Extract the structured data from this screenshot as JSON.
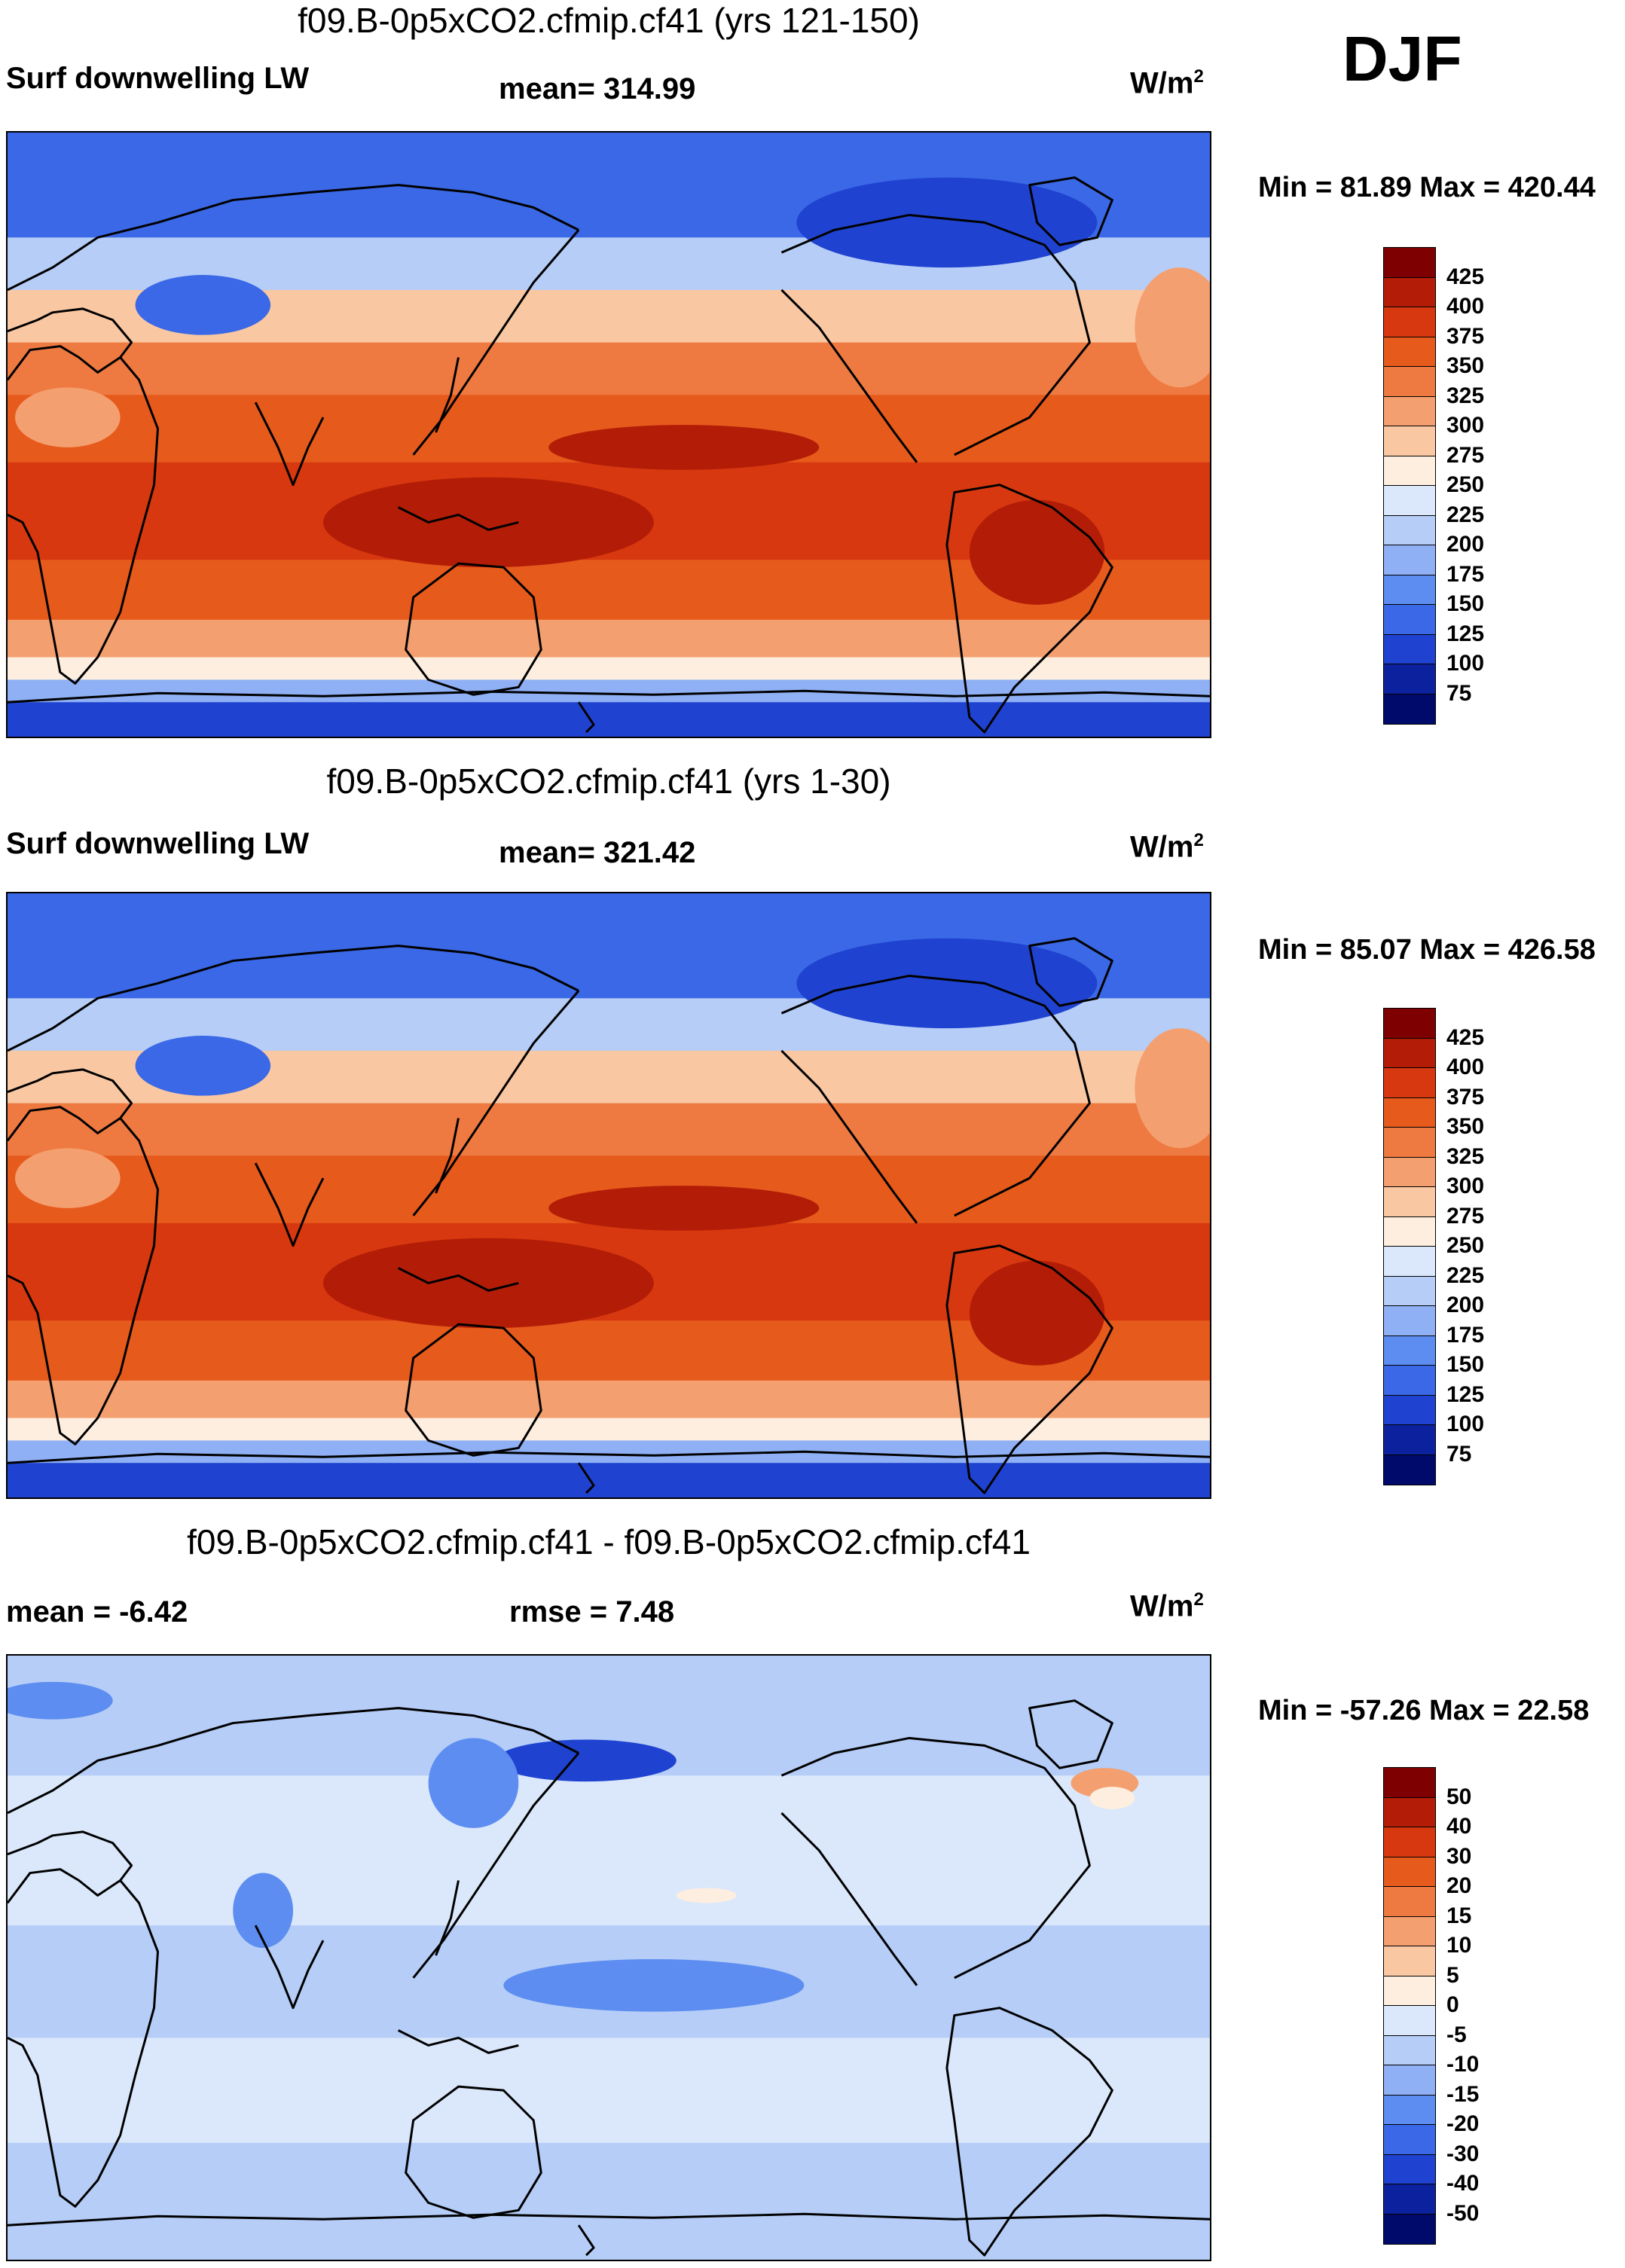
{
  "season": "DJF",
  "panels": [
    {
      "title": "f09.B-0p5xCO2.cfmip.cf41 (yrs 121-150)",
      "left_label": "Surf downwelling LW",
      "center_label": "mean= 314.99",
      "units": "W/m",
      "units_sup": "2",
      "min_max": "Min =  81.89 Max = 420.44",
      "colorbar": {
        "levels": [
          "425",
          "400",
          "375",
          "350",
          "325",
          "300",
          "275",
          "250",
          "225",
          "200",
          "175",
          "150",
          "125",
          "100",
          "75"
        ],
        "colors": [
          "#7f0000",
          "#b31d07",
          "#d7380f",
          "#e65a1c",
          "#ee7a41",
          "#f49f6f",
          "#f9c8a3",
          "#fdeedf",
          "#dbe8fb",
          "#b5cdf7",
          "#8fb0f4",
          "#5d8df0",
          "#3a68e6",
          "#1f43d0",
          "#0c219e",
          "#000a6b"
        ]
      },
      "map_kind": "abs"
    },
    {
      "title": "f09.B-0p5xCO2.cfmip.cf41 (yrs 1-30)",
      "left_label": "Surf downwelling LW",
      "center_label": "mean= 321.42",
      "units": "W/m",
      "units_sup": "2",
      "min_max": "Min =  85.07 Max = 426.58",
      "colorbar": {
        "levels": [
          "425",
          "400",
          "375",
          "350",
          "325",
          "300",
          "275",
          "250",
          "225",
          "200",
          "175",
          "150",
          "125",
          "100",
          "75"
        ],
        "colors": [
          "#7f0000",
          "#b31d07",
          "#d7380f",
          "#e65a1c",
          "#ee7a41",
          "#f49f6f",
          "#f9c8a3",
          "#fdeedf",
          "#dbe8fb",
          "#b5cdf7",
          "#8fb0f4",
          "#5d8df0",
          "#3a68e6",
          "#1f43d0",
          "#0c219e",
          "#000a6b"
        ]
      },
      "map_kind": "abs"
    },
    {
      "title": "f09.B-0p5xCO2.cfmip.cf41 - f09.B-0p5xCO2.cfmip.cf41",
      "left_label": "mean =  -6.42",
      "center_label": "rmse =   7.48",
      "units": "W/m",
      "units_sup": "2",
      "min_max": "Min = -57.26 Max =  22.58",
      "colorbar": {
        "levels": [
          "50",
          "40",
          "30",
          "20",
          "15",
          "10",
          "5",
          "0",
          "-5",
          "-10",
          "-15",
          "-20",
          "-30",
          "-40",
          "-50"
        ],
        "colors": [
          "#7f0000",
          "#b31d07",
          "#d7380f",
          "#e65a1c",
          "#ee7a41",
          "#f49f6f",
          "#f9c8a3",
          "#fdeedf",
          "#dbe8fb",
          "#b5cdf7",
          "#8fb0f4",
          "#5d8df0",
          "#3a68e6",
          "#1f43d0",
          "#0c219e",
          "#000a6b"
        ]
      },
      "map_kind": "diff"
    }
  ],
  "chart_data": [
    {
      "type": "heatmap",
      "title": "f09.B-0p5xCO2.cfmip.cf41 (yrs 121-150)",
      "variable": "Surf downwelling LW",
      "units": "W/m2",
      "season": "DJF",
      "mean": 314.99,
      "min": 81.89,
      "max": 420.44,
      "contour_levels": [
        75,
        100,
        125,
        150,
        175,
        200,
        225,
        250,
        275,
        300,
        325,
        350,
        375,
        400,
        425
      ]
    },
    {
      "type": "heatmap",
      "title": "f09.B-0p5xCO2.cfmip.cf41 (yrs 1-30)",
      "variable": "Surf downwelling LW",
      "units": "W/m2",
      "season": "DJF",
      "mean": 321.42,
      "min": 85.07,
      "max": 426.58,
      "contour_levels": [
        75,
        100,
        125,
        150,
        175,
        200,
        225,
        250,
        275,
        300,
        325,
        350,
        375,
        400,
        425
      ]
    },
    {
      "type": "heatmap",
      "title": "f09.B-0p5xCO2.cfmip.cf41 - f09.B-0p5xCO2.cfmip.cf41",
      "units": "W/m2",
      "season": "DJF",
      "mean": -6.42,
      "rmse": 7.48,
      "min": -57.26,
      "max": 22.58,
      "contour_levels": [
        -50,
        -40,
        -30,
        -20,
        -15,
        -10,
        -5,
        0,
        5,
        10,
        15,
        20,
        30,
        40,
        50
      ]
    }
  ]
}
